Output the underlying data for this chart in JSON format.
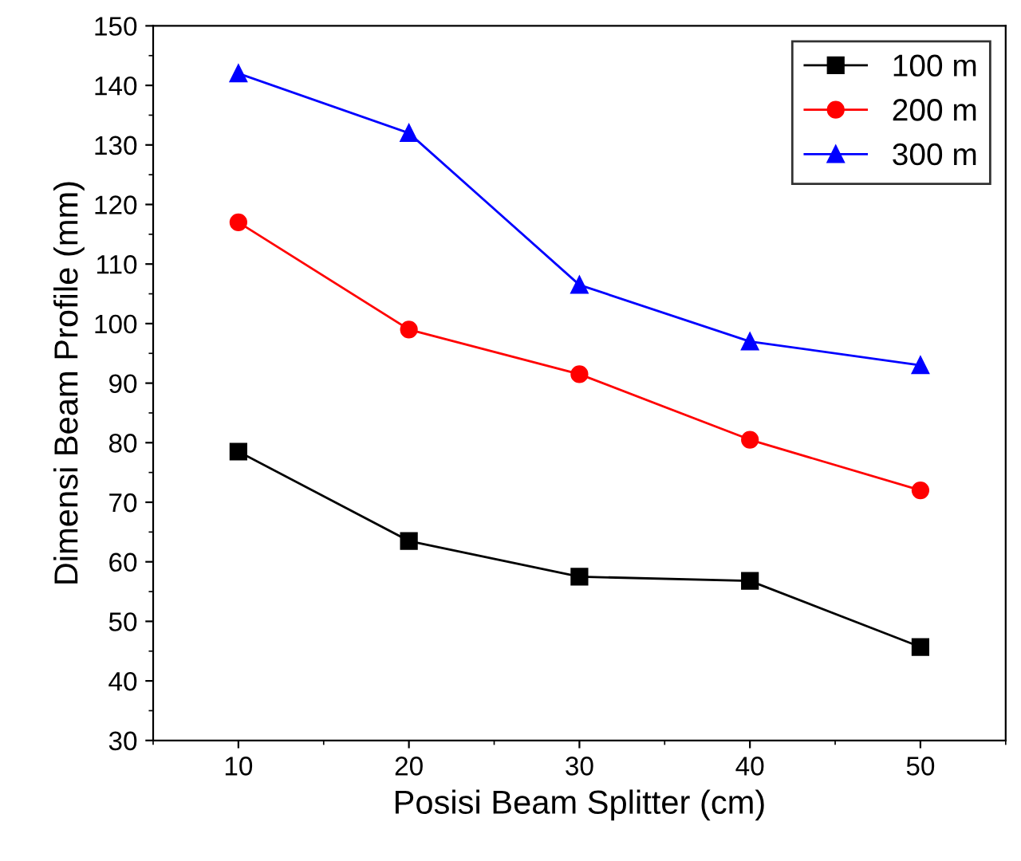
{
  "chart_data": {
    "type": "line",
    "xlabel": "Posisi Beam Splitter (cm)",
    "ylabel": "Dimensi Beam Profile (mm)",
    "x": [
      10,
      20,
      30,
      40,
      50
    ],
    "series": [
      {
        "name": "100 m",
        "color": "#000000",
        "marker": "square",
        "values": [
          78.5,
          63.5,
          57.5,
          56.8,
          45.7
        ]
      },
      {
        "name": "200 m",
        "color": "#ff0000",
        "marker": "circle",
        "values": [
          117,
          99,
          91.5,
          80.5,
          72
        ]
      },
      {
        "name": "300 m",
        "color": "#0000ff",
        "marker": "triangle",
        "values": [
          142,
          132,
          106.5,
          97,
          93
        ]
      }
    ],
    "xlim": [
      5,
      55
    ],
    "xticks": [
      10,
      20,
      30,
      40,
      50
    ],
    "ylim": [
      30,
      150
    ],
    "yticks": [
      30,
      40,
      50,
      60,
      70,
      80,
      90,
      100,
      110,
      120,
      130,
      140,
      150
    ],
    "grid": false,
    "legend": "top right",
    "line_style": "solid"
  }
}
